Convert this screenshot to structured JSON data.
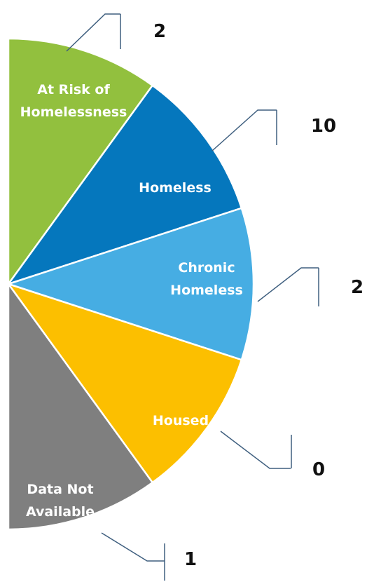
{
  "chart_data": {
    "type": "pie",
    "categories": [
      "At Risk of Homelessness",
      "Homeless",
      "Chronic Homeless",
      "Housed",
      "Data Not Available"
    ],
    "values": [
      2,
      10,
      2,
      0,
      1
    ],
    "colors": [
      "#92c03e",
      "#0577bd",
      "#46ade3",
      "#fcbf00",
      "#7f7f7f"
    ]
  }
}
